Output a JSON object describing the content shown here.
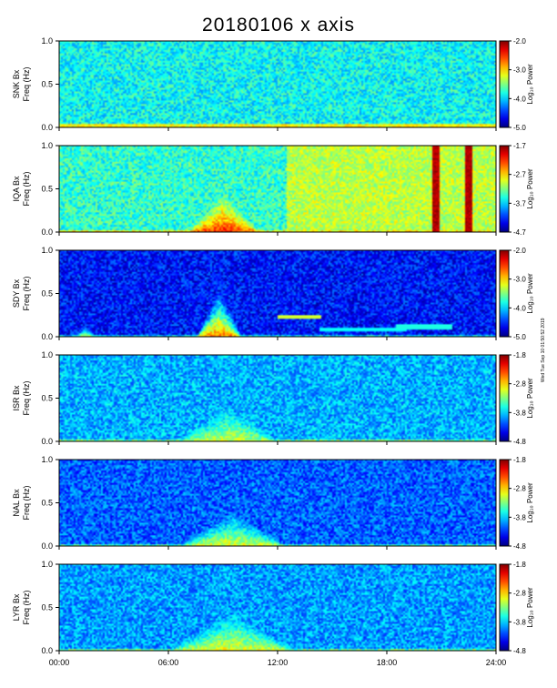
{
  "chart_data": {
    "type": "heatmap",
    "title": "20180106 x axis",
    "x": {
      "label": "",
      "range_hours": [
        0,
        24
      ],
      "ticks": [
        "00:00",
        "06:00",
        "12:00",
        "18:00",
        "24:00"
      ]
    },
    "y_ticks": [
      "0.0",
      "0.5",
      "1.0"
    ],
    "y_range_hz": [
      0,
      1
    ],
    "colorbar_label": "Log₁₀ Power",
    "stamp": "Wed Tue Sep 10 01:50:52 2019",
    "panels": [
      {
        "station": "SNK Bx",
        "ylabel": "Freq (Hz)",
        "cbar_ticks": [
          "-2.0",
          "-3.0",
          "-4.0",
          "-5.0"
        ],
        "crange": [
          -5.0,
          -2.0
        ],
        "base_level": 0.38,
        "features": [
          {
            "kind": "band",
            "f_hi": 0.05,
            "level": 0.62
          }
        ]
      },
      {
        "station": "IQA Bx",
        "ylabel": "Freq (Hz)",
        "cbar_ticks": [
          "-1.7",
          "-2.7",
          "-3.7",
          "-4.7"
        ],
        "crange": [
          -4.7,
          -1.7
        ],
        "base_level": 0.42,
        "features": [
          {
            "kind": "burst",
            "t0": 7.0,
            "t1": 11.0,
            "f_hi": 0.45,
            "level": 0.85
          },
          {
            "kind": "ramp",
            "t0": 12.5,
            "t1": 24,
            "level": 0.56
          },
          {
            "kind": "line",
            "t0": 20.5,
            "t1": 20.8,
            "level": 0.95
          },
          {
            "kind": "line",
            "t0": 22.3,
            "t1": 22.6,
            "level": 0.95
          }
        ]
      },
      {
        "station": "SDY Bx",
        "ylabel": "Freq (Hz)",
        "cbar_ticks": [
          "-2.0",
          "-3.0",
          "-4.0",
          "-5.0"
        ],
        "crange": [
          -5.0,
          -2.0
        ],
        "base_level": 0.14,
        "features": [
          {
            "kind": "burst",
            "t0": 7.5,
            "t1": 10.0,
            "f_hi": 0.55,
            "level": 0.78
          },
          {
            "kind": "burst",
            "t0": 0.8,
            "t1": 2.0,
            "f_hi": 0.15,
            "level": 0.6
          },
          {
            "kind": "hband",
            "t0": 12.0,
            "t1": 14.3,
            "f_lo": 0.22,
            "f_hi": 0.27,
            "level": 0.58
          },
          {
            "kind": "hband",
            "t0": 14.3,
            "t1": 19.0,
            "f_lo": 0.08,
            "f_hi": 0.12,
            "level": 0.38
          },
          {
            "kind": "hband",
            "t0": 18.5,
            "t1": 21.5,
            "f_lo": 0.1,
            "f_hi": 0.15,
            "level": 0.4
          }
        ]
      },
      {
        "station": "ISR Bx",
        "ylabel": "Freq (Hz)",
        "cbar_ticks": [
          "-1.8",
          "-2.8",
          "-3.8",
          "-4.8"
        ],
        "crange": [
          -4.8,
          -1.8
        ],
        "base_level": 0.3,
        "features": [
          {
            "kind": "burst",
            "t0": 6.5,
            "t1": 12.0,
            "f_hi": 0.4,
            "level": 0.58
          }
        ]
      },
      {
        "station": "NAL Bx",
        "ylabel": "Freq (Hz)",
        "cbar_ticks": [
          "-1.8",
          "-2.8",
          "-3.8",
          "-4.8"
        ],
        "crange": [
          -4.8,
          -1.8
        ],
        "base_level": 0.22,
        "features": [
          {
            "kind": "burst",
            "t0": 6.5,
            "t1": 12.5,
            "f_hi": 0.4,
            "level": 0.62
          }
        ]
      },
      {
        "station": "LYR Bx",
        "ylabel": "Freq (Hz)",
        "cbar_ticks": [
          "-1.8",
          "-2.8",
          "-3.8",
          "-4.8"
        ],
        "crange": [
          -4.8,
          -1.8
        ],
        "base_level": 0.28,
        "features": [
          {
            "kind": "burst",
            "t0": 6.0,
            "t1": 13.0,
            "f_hi": 0.45,
            "level": 0.62
          }
        ]
      }
    ]
  }
}
